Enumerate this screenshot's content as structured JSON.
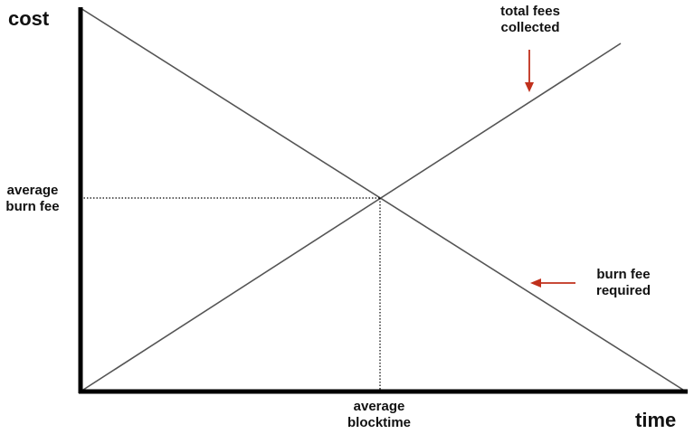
{
  "axes": {
    "y_label": "cost",
    "x_label": "time"
  },
  "annotations": {
    "y_marker": [
      "average",
      "burn fee"
    ],
    "x_marker": [
      "average",
      "blocktime"
    ],
    "total_fees": [
      "total fees",
      "collected"
    ],
    "burn_fee": [
      "burn fee",
      "required"
    ]
  },
  "colors": {
    "axis": "#000000",
    "line": "#555555",
    "guide": "#000000",
    "arrow": "#c0301c",
    "text": "#111111"
  }
}
